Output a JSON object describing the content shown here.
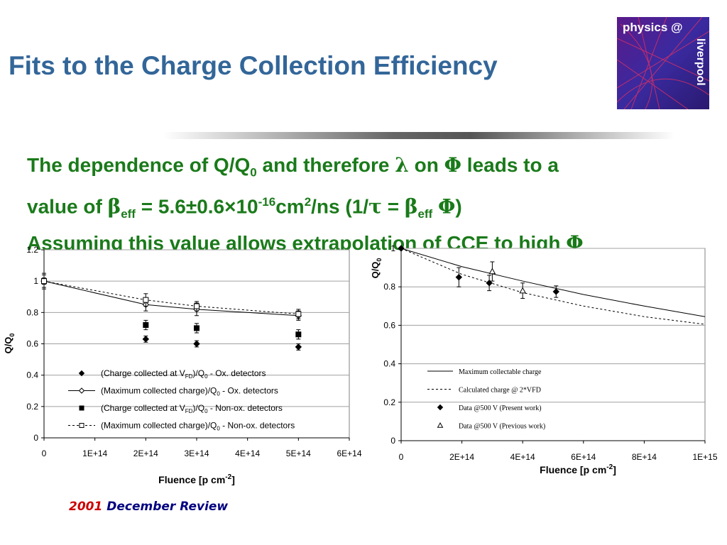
{
  "slide": {
    "title": "Fits to the Charge Collection Efficiency",
    "logo_text_top": "physics @",
    "logo_text_side": "liverpool",
    "body": {
      "line1": {
        "a": "The dependence of Q/Q",
        "sub": "0",
        "b": " and therefore ",
        "lambda": "λ",
        "c": " on ",
        "phi": "Φ",
        "d": " leads to a"
      },
      "line2": {
        "a": "value of ",
        "beta": "β",
        "eff": "eff",
        "b": " = 5.6",
        "pm": "±",
        "c": "0.6",
        "times": "×",
        "d": "10",
        "exp": "-16",
        "e": "cm",
        "sq": "2",
        "f": "/ns (1/",
        "tau": "τ",
        "g": " = ",
        "beta2": "β",
        "eff2": "eff",
        "h": " ",
        "phi": "Φ",
        "i": ")"
      },
      "line3": {
        "a": "Assuming this value allows extrapolation of CCE to high ",
        "phi": "Φ"
      }
    },
    "footer": {
      "year": "2001",
      "text": "December Review"
    },
    "colors": {
      "title": "#336699",
      "body": "#1a7a1a",
      "footer_year": "#cc0000",
      "footer_text": "#000080"
    }
  },
  "chart_data": [
    {
      "type": "scatter",
      "xlabel": "Fluence [p cm",
      "xlabel_sup": "-2",
      "xlabel_end": "]",
      "ylabel": "Q/Q",
      "ylabel_sub": "0",
      "xlim": [
        0,
        600000000000000.0
      ],
      "ylim": [
        0,
        1.2
      ],
      "x_ticks": [
        0,
        100000000000000.0,
        200000000000000.0,
        300000000000000.0,
        400000000000000.0,
        500000000000000.0,
        600000000000000.0
      ],
      "x_tick_labels": [
        "0",
        "1E+14",
        "2E+14",
        "3E+14",
        "4E+14",
        "5E+14",
        "6E+14"
      ],
      "y_ticks": [
        0,
        0.2,
        0.4,
        0.6,
        0.8,
        1,
        1.2
      ],
      "y_tick_labels": [
        "0",
        "0.2",
        "0.4",
        "0.6",
        "0.8",
        "1",
        "1.2"
      ],
      "grid": true,
      "legend_position": "bottom-center",
      "series": [
        {
          "name": "(Charge collected at V_FD)/Q_0 - Ox. detectors",
          "label_parts": [
            "(Charge collected at V",
            "FD",
            ")/Q",
            "0",
            " - Ox. detectors"
          ],
          "marker": "diamond-filled",
          "line": "none",
          "x": [
            0,
            200000000000000.0,
            300000000000000.0,
            500000000000000.0
          ],
          "y": [
            1.0,
            0.63,
            0.6,
            0.58
          ],
          "err": [
            0,
            0.02,
            0.02,
            0.02
          ]
        },
        {
          "name": "(Maximum collected charge)/Q_0 - Ox. detectors",
          "label_parts": [
            "(Maximum collected charge)/Q",
            "0",
            " - Ox. detectors"
          ],
          "marker": "diamond-open",
          "line": "solid",
          "x": [
            0,
            200000000000000.0,
            300000000000000.0,
            500000000000000.0
          ],
          "y": [
            1.0,
            0.85,
            0.82,
            0.78
          ],
          "err": [
            0.05,
            0.04,
            0.04,
            0.03
          ]
        },
        {
          "name": "(Charge collected at V_FD)/Q_0 - Non-ox. detectors",
          "label_parts": [
            "(Charge collected at V",
            "FD",
            ")/Q",
            "0",
            " - Non-ox. detectors"
          ],
          "marker": "square-filled",
          "line": "none",
          "x": [
            0,
            200000000000000.0,
            300000000000000.0,
            500000000000000.0
          ],
          "y": [
            1.0,
            0.72,
            0.7,
            0.66
          ],
          "err": [
            0.02,
            0.03,
            0.03,
            0.03
          ]
        },
        {
          "name": "(Maximum collected charge)/Q_0 - Non-ox. detectors",
          "label_parts": [
            "(Maximum collected charge)/Q",
            "0",
            " - Non-ox. detectors"
          ],
          "marker": "square-open",
          "line": "dotted",
          "x": [
            0,
            200000000000000.0,
            300000000000000.0,
            500000000000000.0
          ],
          "y": [
            1.0,
            0.88,
            0.84,
            0.79
          ],
          "err": [
            0.04,
            0.04,
            0.03,
            0.03
          ]
        }
      ]
    },
    {
      "type": "line",
      "xlabel": "Fluence [p cm",
      "xlabel_sup": "-2",
      "xlabel_end": "]",
      "ylabel": "Q/Q",
      "ylabel_sub": "0",
      "xlim": [
        0,
        1000000000000000.0
      ],
      "ylim": [
        0,
        1
      ],
      "x_ticks": [
        0,
        200000000000000.0,
        400000000000000.0,
        600000000000000.0,
        800000000000000.0,
        1000000000000000.0
      ],
      "x_tick_labels": [
        "0",
        "2E+14",
        "4E+14",
        "6E+14",
        "8E+14",
        "1E+15"
      ],
      "y_ticks": [
        0,
        0.2,
        0.4,
        0.6,
        0.8,
        1
      ],
      "y_tick_labels": [
        "0",
        "0.2",
        "0.4",
        "0.6",
        "0.8",
        "1"
      ],
      "grid": true,
      "legend_position": "bottom-center",
      "series": [
        {
          "name": "Maximum collectable charge",
          "marker": "none",
          "line": "solid",
          "x": [
            0,
            200000000000000.0,
            400000000000000.0,
            600000000000000.0,
            800000000000000.0,
            1000000000000000.0
          ],
          "y": [
            1.0,
            0.905,
            0.83,
            0.76,
            0.7,
            0.645
          ]
        },
        {
          "name": "Calculated charge @ 2*VFD",
          "marker": "none",
          "line": "dotted",
          "x": [
            0,
            200000000000000.0,
            400000000000000.0,
            600000000000000.0,
            800000000000000.0,
            1000000000000000.0
          ],
          "y": [
            1.0,
            0.865,
            0.77,
            0.7,
            0.645,
            0.605
          ]
        },
        {
          "name": "Data @500 V (Present work)",
          "marker": "diamond-filled",
          "line": "none",
          "x": [
            0,
            190000000000000.0,
            290000000000000.0,
            510000000000000.0
          ],
          "y": [
            1.0,
            0.85,
            0.82,
            0.775
          ],
          "err": [
            0,
            0.05,
            0.04,
            0.03
          ]
        },
        {
          "name": "Data @500 V (Previous work)",
          "marker": "triangle-open",
          "line": "none",
          "x": [
            300000000000000.0,
            400000000000000.0
          ],
          "y": [
            0.88,
            0.78
          ],
          "err": [
            0.05,
            0.04
          ]
        }
      ]
    }
  ]
}
